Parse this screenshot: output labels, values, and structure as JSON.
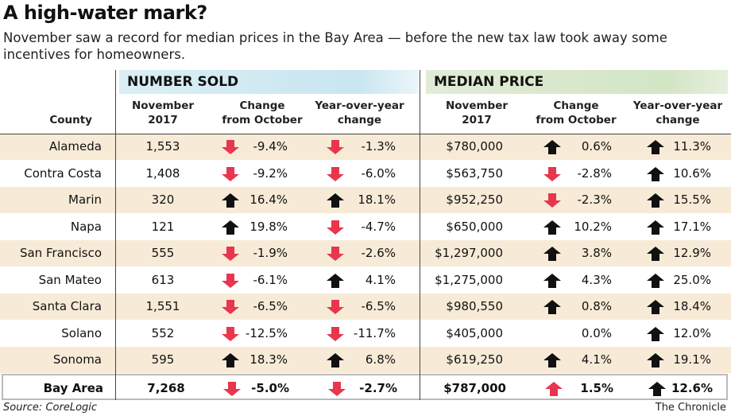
{
  "title": "A high-water mark?",
  "subtitle": "November saw a record for median prices in the Bay Area — before the new tax law took away some incentives for homeowners.",
  "source": "Source: CoreLogic",
  "credit": "The Chronicle",
  "colors": {
    "down": "#e8364f",
    "up": "#111111",
    "band_sold": "#c9e6f1",
    "band_price": "#d3e5c5",
    "row_alt": "#f7ebd7"
  },
  "chart_data": {
    "type": "table",
    "groups": [
      "NUMBER SOLD",
      "MEDIAN PRICE"
    ],
    "headers": {
      "county": "County",
      "sold_nov": [
        "November",
        "2017"
      ],
      "sold_mom": [
        "Change",
        "from October"
      ],
      "sold_yoy": [
        "Year-over-year",
        "change"
      ],
      "price_nov": [
        "November",
        "2017"
      ],
      "price_mom": [
        "Change",
        "from October"
      ],
      "price_yoy": [
        "Year-over-year",
        "change"
      ]
    },
    "rows": [
      {
        "county": "Alameda",
        "sold": "1,553",
        "sold_mom": "-9.4%",
        "sold_mom_arrow": "down-red",
        "sold_yoy": "-1.3%",
        "sold_yoy_arrow": "down-red",
        "price": "$780,000",
        "price_mom": "0.6%",
        "price_mom_arrow": "up-black",
        "price_yoy": "11.3%",
        "price_yoy_arrow": "up-black"
      },
      {
        "county": "Contra Costa",
        "sold": "1,408",
        "sold_mom": "-9.2%",
        "sold_mom_arrow": "down-red",
        "sold_yoy": "-6.0%",
        "sold_yoy_arrow": "down-red",
        "price": "$563,750",
        "price_mom": "-2.8%",
        "price_mom_arrow": "down-red",
        "price_yoy": "10.6%",
        "price_yoy_arrow": "up-black"
      },
      {
        "county": "Marin",
        "sold": "320",
        "sold_mom": "16.4%",
        "sold_mom_arrow": "up-black",
        "sold_yoy": "18.1%",
        "sold_yoy_arrow": "up-black",
        "price": "$952,250",
        "price_mom": "-2.3%",
        "price_mom_arrow": "down-red",
        "price_yoy": "15.5%",
        "price_yoy_arrow": "up-black"
      },
      {
        "county": "Napa",
        "sold": "121",
        "sold_mom": "19.8%",
        "sold_mom_arrow": "up-black",
        "sold_yoy": "-4.7%",
        "sold_yoy_arrow": "down-red",
        "price": "$650,000",
        "price_mom": "10.2%",
        "price_mom_arrow": "up-black",
        "price_yoy": "17.1%",
        "price_yoy_arrow": "up-black"
      },
      {
        "county": "San Francisco",
        "sold": "555",
        "sold_mom": "-1.9%",
        "sold_mom_arrow": "down-red",
        "sold_yoy": "-2.6%",
        "sold_yoy_arrow": "down-red",
        "price": "$1,297,000",
        "price_mom": "3.8%",
        "price_mom_arrow": "up-black",
        "price_yoy": "12.9%",
        "price_yoy_arrow": "up-black"
      },
      {
        "county": "San Mateo",
        "sold": "613",
        "sold_mom": "-6.1%",
        "sold_mom_arrow": "down-red",
        "sold_yoy": "4.1%",
        "sold_yoy_arrow": "up-black",
        "price": "$1,275,000",
        "price_mom": "4.3%",
        "price_mom_arrow": "up-black",
        "price_yoy": "25.0%",
        "price_yoy_arrow": "up-black"
      },
      {
        "county": "Santa Clara",
        "sold": "1,551",
        "sold_mom": "-6.5%",
        "sold_mom_arrow": "down-red",
        "sold_yoy": "-6.5%",
        "sold_yoy_arrow": "down-red",
        "price": "$980,550",
        "price_mom": "0.8%",
        "price_mom_arrow": "up-black",
        "price_yoy": "18.4%",
        "price_yoy_arrow": "up-black"
      },
      {
        "county": "Solano",
        "sold": "552",
        "sold_mom": "-12.5%",
        "sold_mom_arrow": "down-red",
        "sold_yoy": "-11.7%",
        "sold_yoy_arrow": "down-red",
        "price": "$405,000",
        "price_mom": "0.0%",
        "price_mom_arrow": "",
        "price_yoy": "12.0%",
        "price_yoy_arrow": "up-black"
      },
      {
        "county": "Sonoma",
        "sold": "595",
        "sold_mom": "18.3%",
        "sold_mom_arrow": "up-black",
        "sold_yoy": "6.8%",
        "sold_yoy_arrow": "up-black",
        "price": "$619,250",
        "price_mom": "4.1%",
        "price_mom_arrow": "up-black",
        "price_yoy": "19.1%",
        "price_yoy_arrow": "up-black"
      },
      {
        "county": "Bay Area",
        "sold": "7,268",
        "sold_mom": "-5.0%",
        "sold_mom_arrow": "down-red",
        "sold_yoy": "-2.7%",
        "sold_yoy_arrow": "down-red",
        "price": "$787,000",
        "price_mom": "1.5%",
        "price_mom_arrow": "up-red",
        "price_yoy": "12.6%",
        "price_yoy_arrow": "up-black"
      }
    ]
  }
}
